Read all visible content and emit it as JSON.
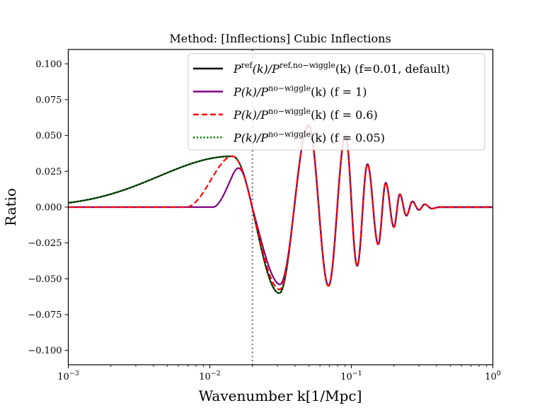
{
  "chart_data": {
    "type": "line",
    "title": "Method: [Inflections] Cubic Inflections",
    "xlabel": "Wavenumber k[1/Mpc]",
    "ylabel": "Ratio",
    "xscale": "log",
    "xlim": [
      0.001,
      1
    ],
    "ylim": [
      -0.11,
      0.11
    ],
    "x_ticks": [
      {
        "value": 0.001,
        "base": "10",
        "exp": "−3"
      },
      {
        "value": 0.01,
        "base": "10",
        "exp": "−2"
      },
      {
        "value": 0.1,
        "base": "10",
        "exp": "−1"
      },
      {
        "value": 1,
        "base": "10",
        "exp": "0"
      }
    ],
    "y_ticks": [
      {
        "value": 0.1,
        "label": "0.100"
      },
      {
        "value": 0.075,
        "label": "0.075"
      },
      {
        "value": 0.05,
        "label": "0.050"
      },
      {
        "value": 0.025,
        "label": "0.025"
      },
      {
        "value": 0.0,
        "label": "0.000"
      },
      {
        "value": -0.025,
        "label": "−0.025"
      },
      {
        "value": -0.05,
        "label": "−0.050"
      },
      {
        "value": -0.075,
        "label": "−0.075"
      },
      {
        "value": -0.1,
        "label": "−0.100"
      }
    ],
    "vline": {
      "x": 0.02,
      "color": "#808080",
      "style": "dotted"
    },
    "legend": {
      "placement": "top-right"
    },
    "series": [
      {
        "name": "P^ref(k)/P^ref,no-wiggle(k) (f=0.01, default)",
        "legend_main": "P",
        "legend_sup1": "ref",
        "legend_mid": "(k)/P",
        "legend_sup2": "ref,no−wiggle",
        "legend_tail": "(k) (f=0.01, default)",
        "color": "#000000",
        "style": "solid",
        "f": 0.01
      },
      {
        "name": "P(k)/P^no-wiggle(k) (f = 1)",
        "legend_main": "P(k)/P",
        "legend_sup1": "no−wiggle",
        "legend_tail": "(k) (f = 1)",
        "color": "#800080",
        "style": "solid",
        "f": 1
      },
      {
        "name": "P(k)/P^no-wiggle(k) (f = 0.6)",
        "legend_main": "P(k)/P",
        "legend_sup1": "no−wiggle",
        "legend_tail": "(k) (f = 0.6)",
        "color": "#ff0000",
        "style": "dashed",
        "f": 0.6
      },
      {
        "name": "P(k)/P^no-wiggle(k) (f = 0.05)",
        "legend_main": "P(k)/P",
        "legend_sup1": "no−wiggle",
        "legend_tail": "(k) (f = 0.05)",
        "color": "#008000",
        "style": "dotted",
        "f": 0.05
      }
    ],
    "extrema_points": [
      {
        "k": 0.0145,
        "y": 0.0355
      },
      {
        "k": 0.031,
        "y": -0.06
      },
      {
        "k": 0.05,
        "y": 0.057
      },
      {
        "k": 0.069,
        "y": -0.055
      },
      {
        "k": 0.091,
        "y": 0.05
      },
      {
        "k": 0.11,
        "y": -0.041
      },
      {
        "k": 0.13,
        "y": 0.03
      },
      {
        "k": 0.155,
        "y": -0.026
      },
      {
        "k": 0.175,
        "y": 0.017
      },
      {
        "k": 0.2,
        "y": -0.014
      },
      {
        "k": 0.22,
        "y": 0.009
      },
      {
        "k": 0.245,
        "y": -0.006
      },
      {
        "k": 0.27,
        "y": 0.004
      },
      {
        "k": 0.3,
        "y": -0.002
      },
      {
        "k": 0.33,
        "y": 0.002
      },
      {
        "k": 0.37,
        "y": -0.001
      },
      {
        "k": 0.42,
        "y": 0.0
      }
    ]
  }
}
